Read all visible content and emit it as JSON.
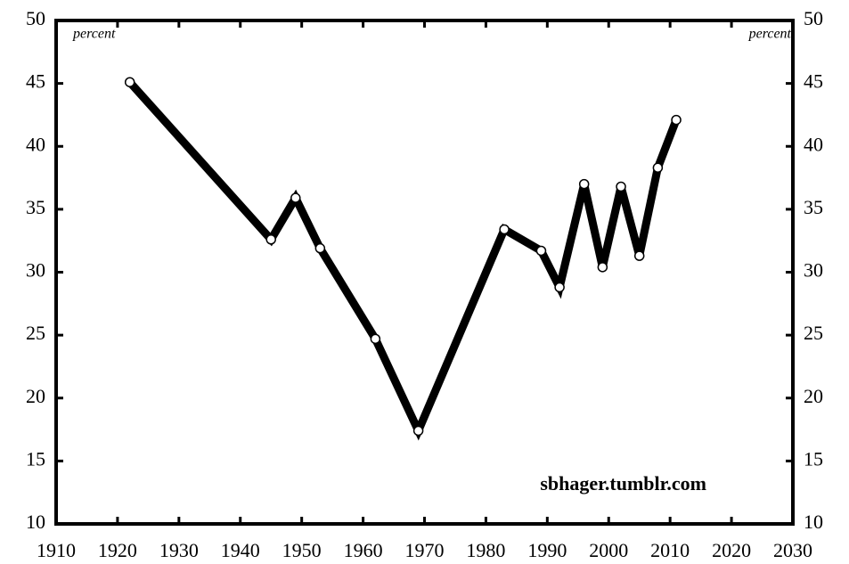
{
  "chart_data": {
    "type": "line",
    "x": [
      1922,
      1945,
      1949,
      1953,
      1962,
      1969,
      1983,
      1989,
      1992,
      1996,
      1999,
      2002,
      2005,
      2008,
      2011
    ],
    "values": [
      45.1,
      32.6,
      35.9,
      31.9,
      24.7,
      17.4,
      33.4,
      31.7,
      28.8,
      37.0,
      30.4,
      36.8,
      31.3,
      38.3,
      42.1
    ],
    "color": "#000000",
    "xlim": [
      1910,
      2030
    ],
    "xticks": [
      1910,
      1920,
      1930,
      1940,
      1950,
      1960,
      1970,
      1980,
      1990,
      2000,
      2010,
      2020,
      2030
    ],
    "ylim": [
      10,
      50
    ],
    "yticks": [
      10,
      15,
      20,
      25,
      30,
      35,
      40,
      45,
      50
    ],
    "y2lim": [
      10,
      50
    ],
    "y2ticks": [
      10,
      15,
      20,
      25,
      30,
      35,
      40,
      45,
      50
    ],
    "ylabel": "percent",
    "y2label": "percent",
    "annotation": "sbhager.tumblr.com"
  }
}
